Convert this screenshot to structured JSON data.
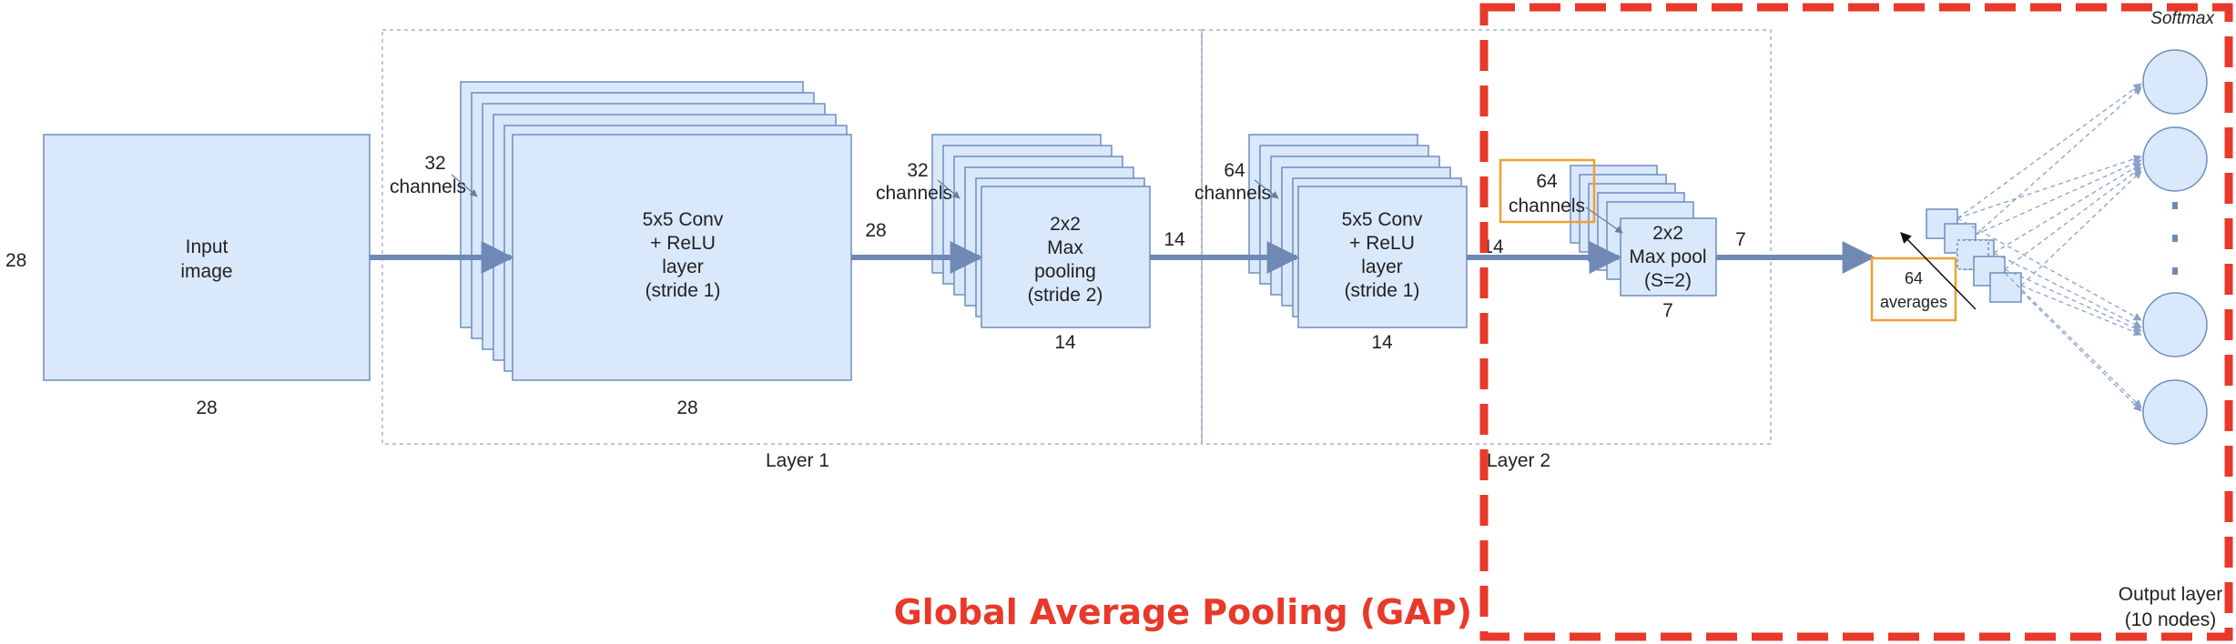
{
  "colors": {
    "box_fill": "#dae8fc",
    "box_stroke": "#6c8ebf",
    "arrow": "#6f89b4",
    "dashed_frame": "#a7b0c4",
    "orange": "#f0a030",
    "red": "#e8392a"
  },
  "input": {
    "label_line1": "Input",
    "label_line2": "image",
    "dim_left": "28",
    "dim_bottom": "28"
  },
  "conv1": {
    "line1": "5x5 Conv",
    "line2": "+ ReLU",
    "line3": "layer",
    "line4": "(stride 1)",
    "channels_num": "32",
    "channels_word": "channels",
    "dim_right": "28",
    "dim_bottom": "28"
  },
  "pool1": {
    "line1": "2x2",
    "line2": "Max",
    "line3": "pooling",
    "line4": "(stride 2)",
    "channels_num": "32",
    "channels_word": "channels",
    "dim_right": "14",
    "dim_bottom": "14"
  },
  "conv2": {
    "line1": "5x5 Conv",
    "line2": "+ ReLU",
    "line3": "layer",
    "line4": "(stride 1)",
    "channels_num": "64",
    "channels_word": "channels",
    "dim_right": "14",
    "dim_bottom": "14"
  },
  "pool2": {
    "line1": "2x2",
    "line2": "Max pool",
    "line3": "(S=2)",
    "channels_num": "64",
    "channels_word": "channels",
    "dim_right": "7",
    "dim_bottom": "7"
  },
  "averages": {
    "line1": "64",
    "line2": "averages"
  },
  "layers": {
    "layer1": "Layer 1",
    "layer2": "Layer 2"
  },
  "output": {
    "softmax": "Softmax",
    "line1": "Output layer",
    "line2": "(10 nodes)",
    "dots": "·"
  },
  "gap_title": "Global Average Pooling (GAP)"
}
